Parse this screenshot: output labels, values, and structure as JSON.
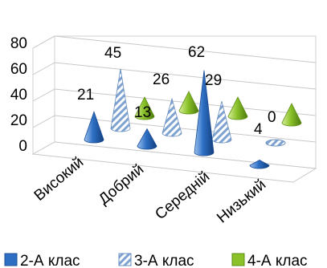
{
  "chart_data": {
    "type": "cone-3d",
    "title": "",
    "categories": [
      "Високий",
      "Добрий",
      "Середній",
      "Низький"
    ],
    "series": [
      {
        "name": "2-А клас",
        "values": [
          21,
          13,
          62,
          4
        ],
        "color": "#2e6fc4"
      },
      {
        "name": "3-А клас",
        "values": [
          45,
          26,
          29,
          0
        ],
        "color": "#7fa3d1",
        "pattern": "diagonal-stripes"
      },
      {
        "name": "4-А клас",
        "values": [
          null,
          null,
          null,
          null
        ],
        "color": "#7db61c"
      }
    ],
    "data_labels": [
      "21",
      "45",
      "13",
      "26",
      "62",
      "29",
      "4",
      "0"
    ],
    "yticks": [
      "0",
      "20",
      "40",
      "60",
      "80"
    ],
    "ylim": [
      0,
      80
    ],
    "gridlines": true,
    "legend_position": "bottom"
  }
}
